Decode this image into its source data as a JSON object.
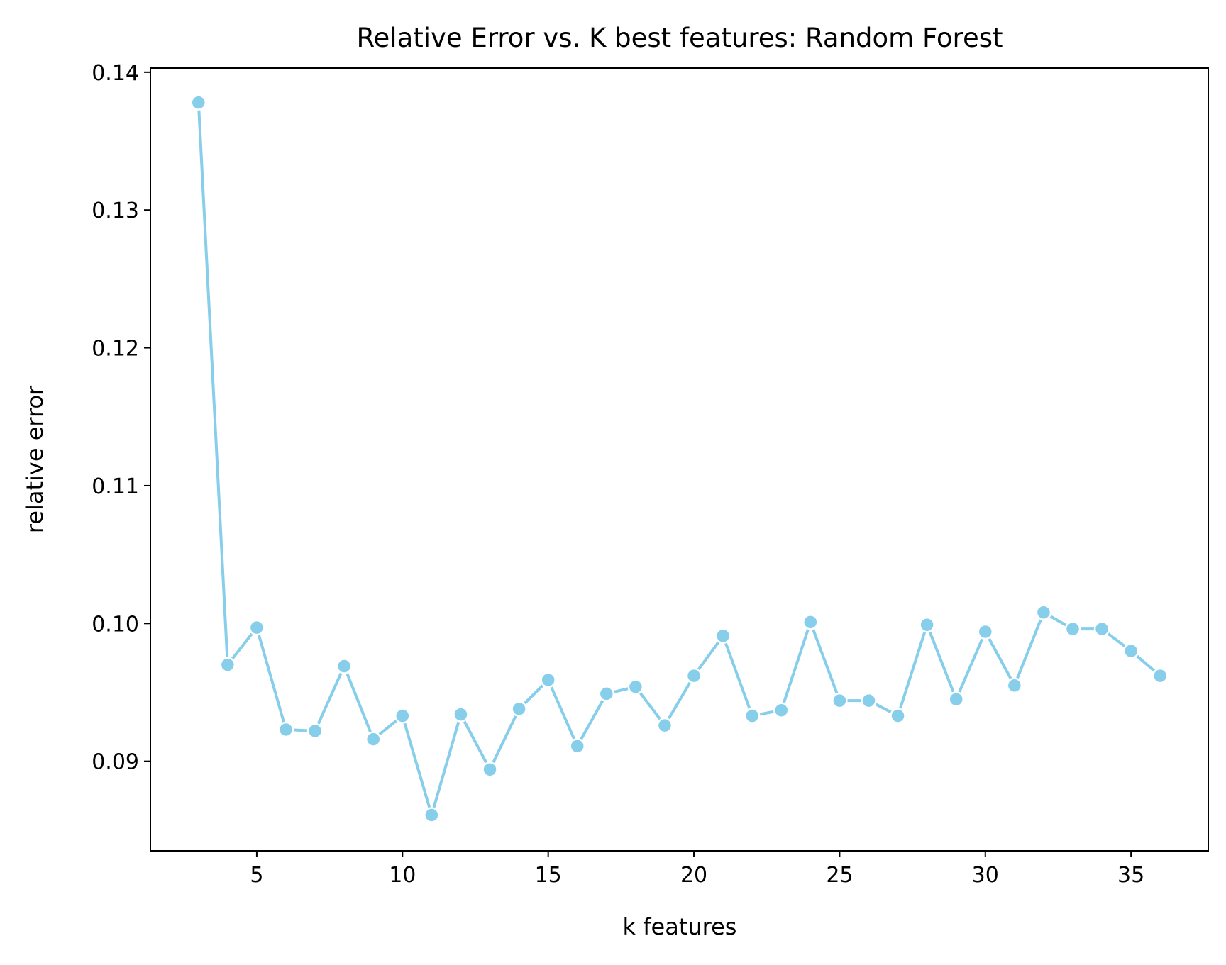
{
  "chart_data": {
    "type": "line",
    "title": "Relative Error vs. K best features: Random Forest",
    "xlabel": "k features",
    "ylabel": "relative error",
    "xlim": [
      1.35,
      37.65
    ],
    "ylim": [
      0.0835,
      0.1403
    ],
    "xticks": [
      5,
      10,
      15,
      20,
      25,
      30,
      35
    ],
    "xtick_labels": [
      "5",
      "10",
      "15",
      "20",
      "25",
      "30",
      "35"
    ],
    "yticks": [
      0.09,
      0.1,
      0.11,
      0.12,
      0.13,
      0.14
    ],
    "ytick_labels": [
      "0.09",
      "0.10",
      "0.11",
      "0.12",
      "0.13",
      "0.14"
    ],
    "grid": false,
    "legend": "none",
    "marker": "circle",
    "color": "#87ceeb",
    "series": [
      {
        "x": [
          3,
          4,
          5,
          6,
          7,
          8,
          9,
          10,
          11,
          12,
          13,
          14,
          15,
          16,
          17,
          18,
          19,
          20,
          21,
          22,
          23,
          24,
          25,
          26,
          27,
          28,
          29,
          30,
          31,
          32,
          33,
          34,
          35,
          36
        ],
        "y": [
          0.1378,
          0.097,
          0.0997,
          0.0923,
          0.0922,
          0.0969,
          0.0916,
          0.0933,
          0.0861,
          0.0934,
          0.0894,
          0.0938,
          0.0959,
          0.0911,
          0.0949,
          0.0954,
          0.0926,
          0.0962,
          0.0991,
          0.0933,
          0.0937,
          0.1001,
          0.0944,
          0.0944,
          0.0933,
          0.0999,
          0.0945,
          0.0994,
          0.0955,
          0.1008,
          0.0996,
          0.0996,
          0.098,
          0.0962
        ]
      }
    ]
  }
}
